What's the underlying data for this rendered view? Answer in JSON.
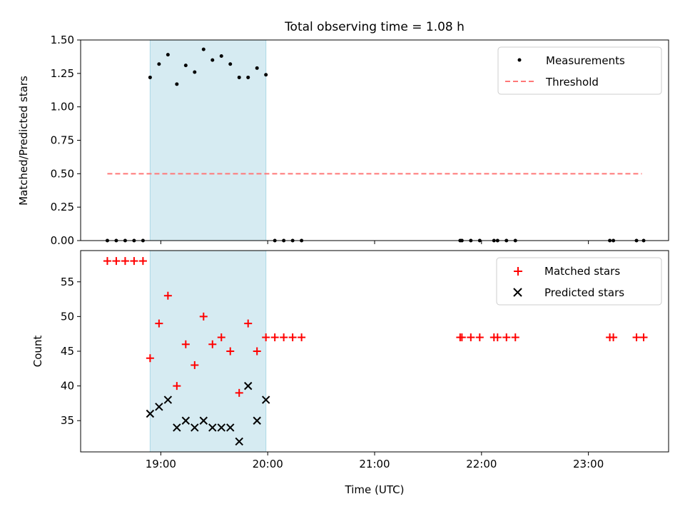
{
  "figure_title": "Total observing time = 1.08 h",
  "colors": {
    "measurements": "#000000",
    "threshold": "#ff7777",
    "matched": "#ff0000",
    "predicted": "#000000",
    "shading": "#add8e6"
  },
  "chart_data": [
    {
      "type": "scatter",
      "panel": "top",
      "title": "Total observing time = 1.08 h",
      "xlabel": "",
      "ylabel": "Matched/Predicted stars",
      "xlim": [
        "18:15",
        "23:45"
      ],
      "ylim": [
        0,
        1.5
      ],
      "yticks": [
        0.0,
        0.25,
        0.5,
        0.75,
        1.0,
        1.25,
        1.5
      ],
      "ytick_labels": [
        "0.00",
        "0.25",
        "0.50",
        "0.75",
        "1.00",
        "1.25",
        "1.50"
      ],
      "x_ticks": [
        "19:00",
        "20:00",
        "21:00",
        "22:00",
        "23:00"
      ],
      "shaded_interval": [
        "18:54",
        "19:59"
      ],
      "legend_position": "top-right",
      "grid": false,
      "series": [
        {
          "name": "Measurements",
          "kind": "scatter",
          "x": [
            "18:30",
            "18:35",
            "18:40",
            "18:45",
            "18:50",
            "18:54",
            "18:59",
            "19:04",
            "19:09",
            "19:14",
            "19:19",
            "19:24",
            "19:29",
            "19:34",
            "19:39",
            "19:44",
            "19:49",
            "19:54",
            "19:59",
            "20:04",
            "20:09",
            "20:14",
            "20:19",
            "21:48",
            "21:49",
            "21:54",
            "21:59",
            "22:07",
            "22:09",
            "22:14",
            "22:19",
            "23:12",
            "23:14",
            "23:27",
            "23:31"
          ],
          "y": [
            0,
            0,
            0,
            0,
            0,
            1.22,
            1.32,
            1.39,
            1.17,
            1.31,
            1.26,
            1.43,
            1.35,
            1.38,
            1.32,
            1.22,
            1.22,
            1.29,
            1.24,
            0,
            0,
            0,
            0,
            0,
            0,
            0,
            0,
            0,
            0,
            0,
            0,
            0,
            0,
            0,
            0
          ]
        },
        {
          "name": "Threshold",
          "kind": "line",
          "x": [
            "18:30",
            "23:30"
          ],
          "y": [
            0.5,
            0.5
          ]
        }
      ]
    },
    {
      "type": "scatter",
      "panel": "bottom",
      "xlabel": "Time (UTC)",
      "ylabel": "Count",
      "xlim": [
        "18:15",
        "23:45"
      ],
      "ylim": [
        30.5,
        59.5
      ],
      "yticks": [
        35,
        40,
        45,
        50,
        55
      ],
      "ytick_labels": [
        "35",
        "40",
        "45",
        "50",
        "55"
      ],
      "x_ticks": [
        "19:00",
        "20:00",
        "21:00",
        "22:00",
        "23:00"
      ],
      "shaded_interval": [
        "18:54",
        "19:59"
      ],
      "legend_position": "top-right",
      "grid": false,
      "series": [
        {
          "name": "Matched stars",
          "kind": "scatter",
          "x": [
            "18:30",
            "18:35",
            "18:40",
            "18:45",
            "18:50",
            "18:54",
            "18:59",
            "19:04",
            "19:09",
            "19:14",
            "19:19",
            "19:24",
            "19:29",
            "19:34",
            "19:39",
            "19:44",
            "19:49",
            "19:54",
            "19:59",
            "20:04",
            "20:09",
            "20:14",
            "20:19",
            "21:48",
            "21:49",
            "21:54",
            "21:59",
            "22:07",
            "22:09",
            "22:14",
            "22:19",
            "23:12",
            "23:14",
            "23:27",
            "23:31"
          ],
          "y": [
            58,
            58,
            58,
            58,
            58,
            44,
            49,
            53,
            40,
            46,
            43,
            50,
            46,
            47,
            45,
            39,
            49,
            45,
            47,
            47,
            47,
            47,
            47,
            47,
            47,
            47,
            47,
            47,
            47,
            47,
            47,
            47,
            47,
            47,
            47
          ]
        },
        {
          "name": "Predicted stars",
          "kind": "scatter",
          "x": [
            "18:54",
            "18:59",
            "19:04",
            "19:09",
            "19:14",
            "19:19",
            "19:24",
            "19:29",
            "19:34",
            "19:39",
            "19:44",
            "19:49",
            "19:54",
            "19:59"
          ],
          "y": [
            36,
            37,
            38,
            34,
            35,
            34,
            35,
            34,
            34,
            34,
            32,
            40,
            35,
            38
          ]
        }
      ]
    }
  ]
}
